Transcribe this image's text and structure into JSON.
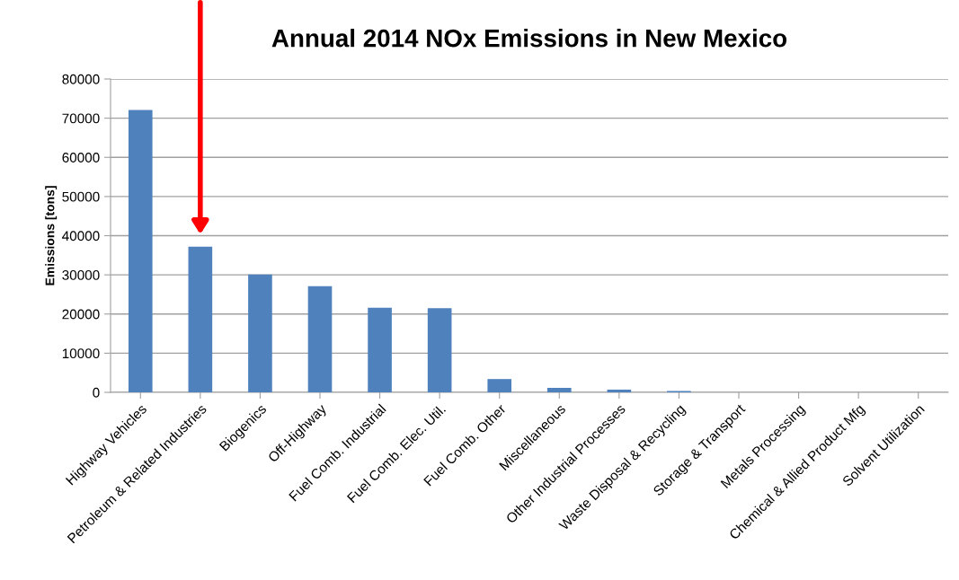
{
  "chart_data": {
    "type": "bar",
    "title": "Annual 2014 NOx Emissions in New Mexico",
    "ylabel": "Emissions [tons]",
    "categories": [
      "Highway Vehicles",
      "Petroleum & Related Industries",
      "Biogenics",
      "Off-Highway",
      "Fuel Comb. Industrial",
      "Fuel Comb. Elec. Util.",
      "Fuel Comb. Other",
      "Miscellaneous",
      "Other Industrial Processes",
      "Waste Disposal & Recycling",
      "Storage & Transport",
      "Metals Processing",
      "Chemical & Allied Product Mfg",
      "Solvent Utilization"
    ],
    "values": [
      72100,
      37200,
      30100,
      27100,
      21600,
      21500,
      3400,
      1150,
      700,
      350,
      0,
      0,
      0,
      0
    ],
    "color": "#4f81bd",
    "ylim": [
      0,
      80000
    ],
    "yticks": [
      0,
      10000,
      20000,
      30000,
      40000,
      50000,
      60000,
      70000,
      80000
    ],
    "grid": "y"
  }
}
